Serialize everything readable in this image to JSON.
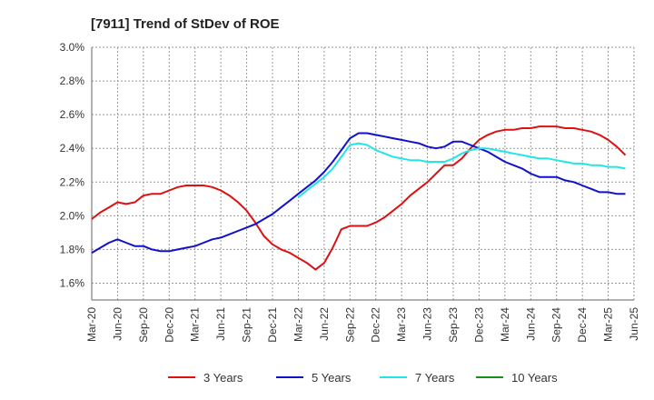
{
  "chart_data": {
    "type": "line",
    "title": "[7911]  Trend of StDev of ROE",
    "xlabel": "",
    "ylabel": "",
    "ylim": [
      1.5,
      3.0
    ],
    "y_ticks": [
      "1.6%",
      "1.8%",
      "2.0%",
      "2.2%",
      "2.4%",
      "2.6%",
      "2.8%",
      "3.0%"
    ],
    "y_tick_values": [
      1.6,
      1.8,
      2.0,
      2.2,
      2.4,
      2.6,
      2.8,
      3.0
    ],
    "x_ticks": [
      "Mar-20",
      "Jun-20",
      "Sep-20",
      "Dec-20",
      "Mar-21",
      "Jun-21",
      "Sep-21",
      "Dec-21",
      "Mar-22",
      "Jun-22",
      "Sep-22",
      "Dec-22",
      "Mar-23",
      "Jun-23",
      "Sep-23",
      "Dec-23",
      "Mar-24",
      "Jun-24",
      "Sep-24",
      "Dec-24",
      "Mar-25",
      "Jun-25"
    ],
    "grid": true,
    "legend_position": "bottom",
    "series": [
      {
        "name": "3 Years",
        "color": "#dd1111",
        "start_month_index": 0,
        "values": [
          1.98,
          2.02,
          2.05,
          2.08,
          2.07,
          2.08,
          2.12,
          2.13,
          2.13,
          2.15,
          2.17,
          2.18,
          2.18,
          2.18,
          2.17,
          2.15,
          2.12,
          2.08,
          2.03,
          1.96,
          1.88,
          1.83,
          1.8,
          1.78,
          1.75,
          1.72,
          1.68,
          1.72,
          1.81,
          1.92,
          1.94,
          1.94,
          1.94,
          1.96,
          1.99,
          2.03,
          2.07,
          2.12,
          2.16,
          2.2,
          2.25,
          2.3,
          2.3,
          2.34,
          2.4,
          2.45,
          2.48,
          2.5,
          2.51,
          2.51,
          2.52,
          2.52,
          2.53,
          2.53,
          2.53,
          2.52,
          2.52,
          2.51,
          2.5,
          2.48,
          2.45,
          2.41,
          2.36
        ]
      },
      {
        "name": "5 Years",
        "color": "#1111cc",
        "start_month_index": 0,
        "values": [
          1.78,
          1.81,
          1.84,
          1.86,
          1.84,
          1.82,
          1.82,
          1.8,
          1.79,
          1.79,
          1.8,
          1.81,
          1.82,
          1.84,
          1.86,
          1.87,
          1.89,
          1.91,
          1.93,
          1.95,
          1.98,
          2.01,
          2.05,
          2.09,
          2.13,
          2.17,
          2.21,
          2.26,
          2.32,
          2.39,
          2.46,
          2.49,
          2.49,
          2.48,
          2.47,
          2.46,
          2.45,
          2.44,
          2.43,
          2.41,
          2.4,
          2.41,
          2.44,
          2.44,
          2.42,
          2.4,
          2.38,
          2.35,
          2.32,
          2.3,
          2.28,
          2.25,
          2.23,
          2.23,
          2.23,
          2.21,
          2.2,
          2.18,
          2.16,
          2.14,
          2.14,
          2.13,
          2.13
        ]
      },
      {
        "name": "7 Years",
        "color": "#22e6e6",
        "start_month_index": 24,
        "values": [
          2.11,
          2.15,
          2.19,
          2.23,
          2.28,
          2.35,
          2.42,
          2.43,
          2.42,
          2.39,
          2.37,
          2.35,
          2.34,
          2.33,
          2.33,
          2.32,
          2.32,
          2.32,
          2.34,
          2.37,
          2.39,
          2.4,
          2.4,
          2.39,
          2.38,
          2.37,
          2.36,
          2.35,
          2.34,
          2.34,
          2.33,
          2.32,
          2.31,
          2.31,
          2.3,
          2.3,
          2.29,
          2.29,
          2.28
        ]
      },
      {
        "name": "10 Years",
        "color": "#1a8c1a",
        "start_month_index": 0,
        "values": []
      }
    ]
  }
}
